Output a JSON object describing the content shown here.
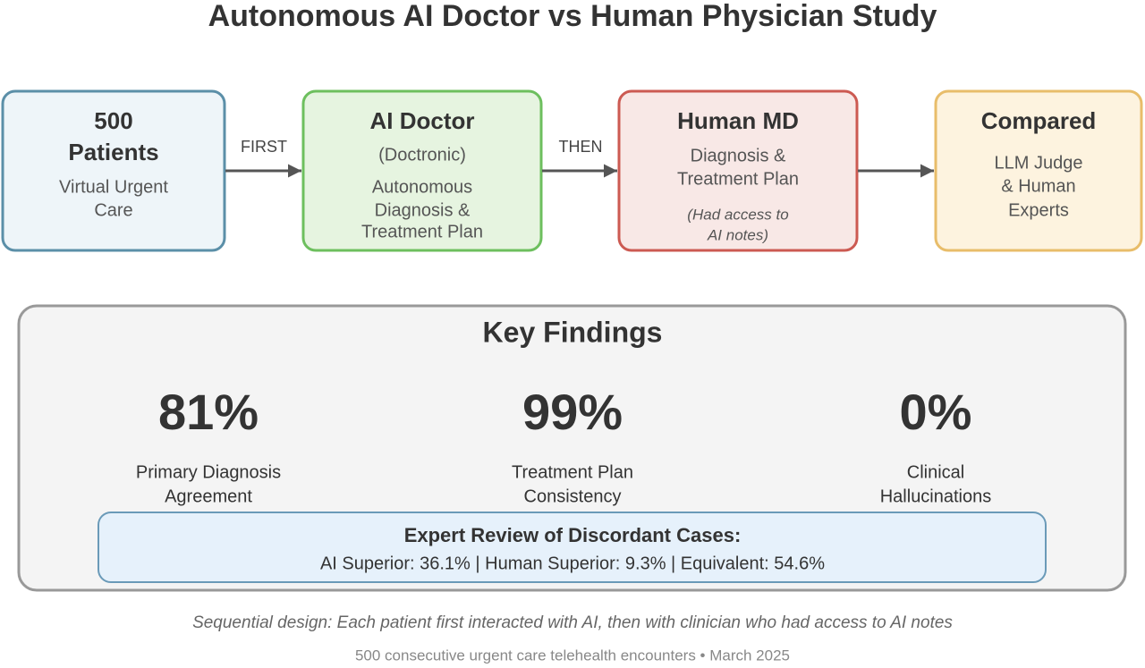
{
  "title": "Autonomous AI Doctor vs Human Physician Study",
  "nodes": [
    {
      "title": [
        "500",
        "Patients"
      ],
      "lines": [
        "Virtual Urgent",
        "Care"
      ]
    },
    {
      "title": [
        "AI Doctor"
      ],
      "lines": [
        "(Doctronic)",
        "Autonomous",
        "Diagnosis &",
        "Treatment Plan"
      ]
    },
    {
      "title": [
        "Human MD"
      ],
      "lines": [
        "Diagnosis &",
        "Treatment Plan"
      ],
      "note": [
        "(Had access to",
        "AI notes)"
      ]
    },
    {
      "title": [
        "Compared"
      ],
      "lines": [
        "LLM Judge",
        "& Human",
        "Experts"
      ]
    }
  ],
  "edges": [
    {
      "label": "FIRST"
    },
    {
      "label": "THEN"
    },
    {
      "label": null
    }
  ],
  "findings": {
    "title": "Key Findings",
    "stats": [
      {
        "value": "81%",
        "label": [
          "Primary Diagnosis",
          "Agreement"
        ]
      },
      {
        "value": "99%",
        "label": [
          "Treatment Plan",
          "Consistency"
        ]
      },
      {
        "value": "0%",
        "label": [
          "Clinical",
          "Hallucinations"
        ]
      }
    ],
    "review": {
      "title": "Expert Review of Discordant Cases:",
      "text": "AI Superior: 36.1% | Human Superior: 9.3% | Equivalent: 54.6%"
    }
  },
  "footnote": "Sequential design: Each patient first interacted with AI, then with clinician who had access to AI notes",
  "footer": "500 consecutive urgent care telehealth encounters • March 2025"
}
